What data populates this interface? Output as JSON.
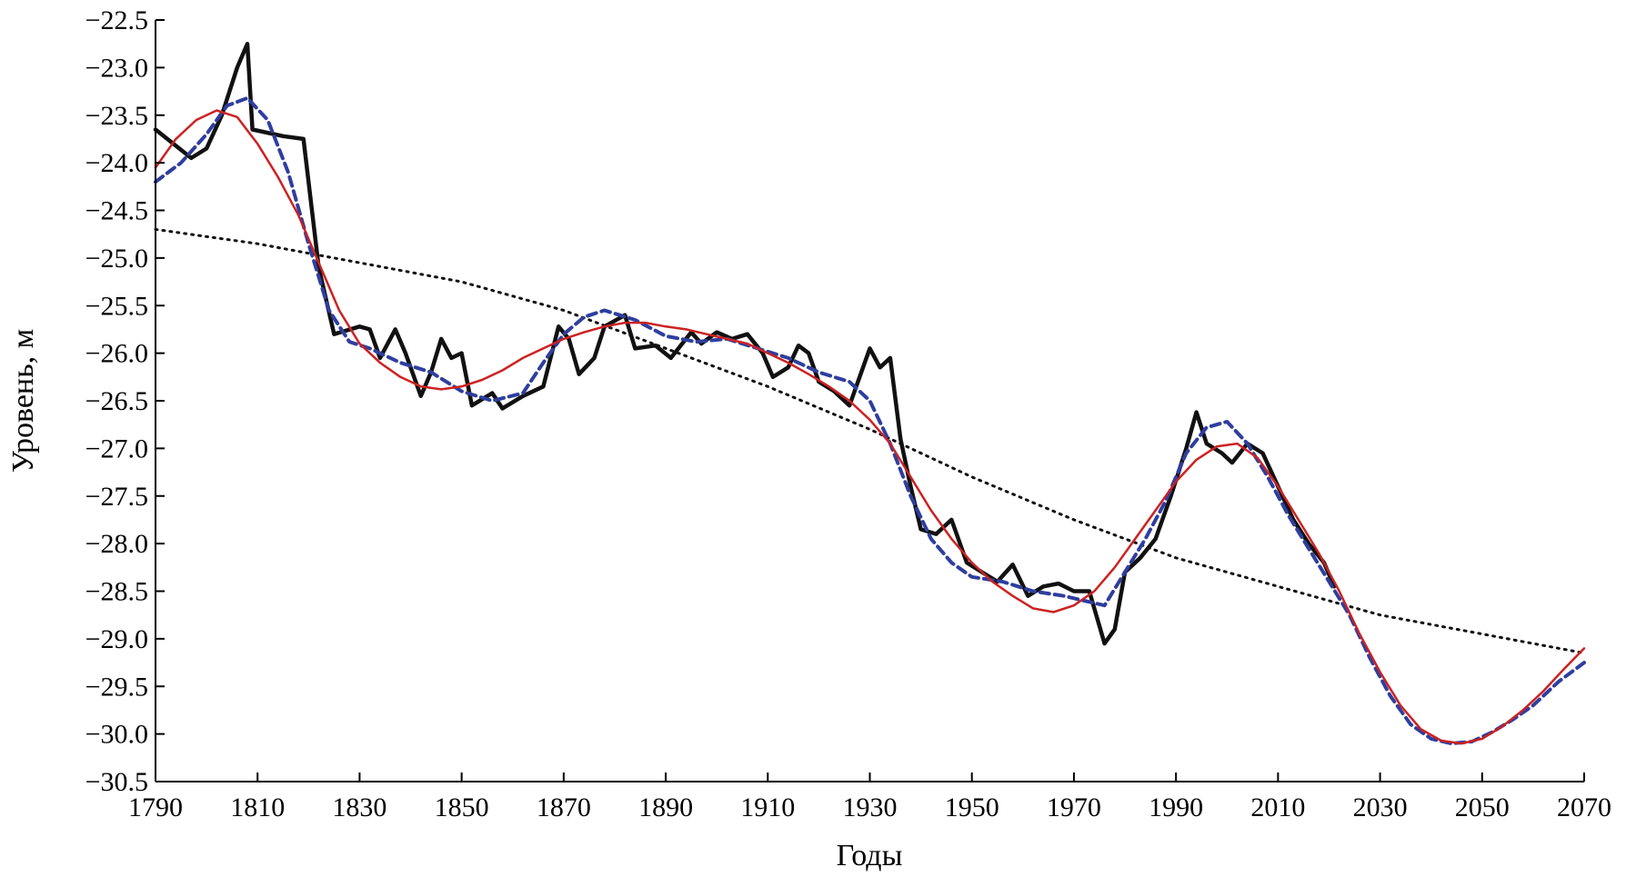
{
  "chart_data": {
    "type": "line",
    "title": "",
    "xlabel": "Годы",
    "ylabel": "Уровень, м",
    "xlim": [
      1790,
      2070
    ],
    "ylim": [
      -30.5,
      -22.5
    ],
    "x_ticks": [
      1790,
      1810,
      1830,
      1850,
      1870,
      1890,
      1910,
      1930,
      1950,
      1970,
      1990,
      2010,
      2030,
      2050,
      2070
    ],
    "y_ticks": [
      -22.5,
      -23.0,
      -23.5,
      -24.0,
      -24.5,
      -25.0,
      -25.5,
      -26.0,
      -26.5,
      -27.0,
      -27.5,
      -28.0,
      -28.5,
      -29.0,
      -29.5,
      -30.0,
      -30.5
    ],
    "y_tick_labels": [
      "−22.5",
      "−23.0",
      "−23.5",
      "−24.0",
      "−24.5",
      "−25.0",
      "−25.5",
      "−26.0",
      "−26.5",
      "−27.0",
      "−27.5",
      "−28.0",
      "−28.5",
      "−29.0",
      "−29.5",
      "−30.0",
      "−30.5"
    ],
    "grid": false,
    "legend": "none",
    "series": [
      {
        "style": "solid-thick",
        "color": "#111111",
        "points": [
          [
            1790,
            -23.65
          ],
          [
            1797,
            -23.95
          ],
          [
            1800,
            -23.85
          ],
          [
            1803,
            -23.5
          ],
          [
            1806,
            -23.0
          ],
          [
            1808,
            -22.75
          ],
          [
            1809,
            -23.65
          ],
          [
            1815,
            -23.72
          ],
          [
            1819,
            -23.75
          ],
          [
            1822,
            -25.1
          ],
          [
            1825,
            -25.8
          ],
          [
            1830,
            -25.72
          ],
          [
            1832,
            -25.75
          ],
          [
            1834,
            -26.05
          ],
          [
            1837,
            -25.75
          ],
          [
            1839,
            -26.0
          ],
          [
            1842,
            -26.45
          ],
          [
            1844,
            -26.2
          ],
          [
            1846,
            -25.85
          ],
          [
            1848,
            -26.05
          ],
          [
            1850,
            -26.0
          ],
          [
            1852,
            -26.55
          ],
          [
            1856,
            -26.42
          ],
          [
            1858,
            -26.58
          ],
          [
            1862,
            -26.45
          ],
          [
            1866,
            -26.35
          ],
          [
            1869,
            -25.72
          ],
          [
            1871,
            -25.85
          ],
          [
            1873,
            -26.22
          ],
          [
            1876,
            -26.05
          ],
          [
            1878,
            -25.72
          ],
          [
            1882,
            -25.6
          ],
          [
            1884,
            -25.95
          ],
          [
            1888,
            -25.92
          ],
          [
            1891,
            -26.05
          ],
          [
            1895,
            -25.78
          ],
          [
            1897,
            -25.9
          ],
          [
            1900,
            -25.78
          ],
          [
            1903,
            -25.85
          ],
          [
            1906,
            -25.8
          ],
          [
            1909,
            -26.0
          ],
          [
            1911,
            -26.25
          ],
          [
            1914,
            -26.15
          ],
          [
            1916,
            -25.92
          ],
          [
            1918,
            -26.0
          ],
          [
            1920,
            -26.3
          ],
          [
            1923,
            -26.4
          ],
          [
            1926,
            -26.55
          ],
          [
            1928,
            -26.25
          ],
          [
            1930,
            -25.95
          ],
          [
            1932,
            -26.15
          ],
          [
            1934,
            -26.05
          ],
          [
            1936,
            -26.9
          ],
          [
            1938,
            -27.4
          ],
          [
            1940,
            -27.85
          ],
          [
            1943,
            -27.9
          ],
          [
            1946,
            -27.75
          ],
          [
            1949,
            -28.2
          ],
          [
            1952,
            -28.3
          ],
          [
            1955,
            -28.4
          ],
          [
            1958,
            -28.22
          ],
          [
            1961,
            -28.55
          ],
          [
            1964,
            -28.45
          ],
          [
            1967,
            -28.42
          ],
          [
            1970,
            -28.5
          ],
          [
            1973,
            -28.5
          ],
          [
            1976,
            -29.05
          ],
          [
            1978,
            -28.9
          ],
          [
            1980,
            -28.3
          ],
          [
            1983,
            -28.15
          ],
          [
            1986,
            -27.95
          ],
          [
            1989,
            -27.5
          ],
          [
            1992,
            -27.0
          ],
          [
            1994,
            -26.62
          ],
          [
            1996,
            -26.95
          ],
          [
            1999,
            -27.05
          ],
          [
            2001,
            -27.15
          ],
          [
            2004,
            -26.95
          ],
          [
            2007,
            -27.05
          ],
          [
            2010,
            -27.4
          ],
          [
            2013,
            -27.75
          ],
          [
            2016,
            -28.0
          ],
          [
            2019,
            -28.2
          ],
          [
            2021,
            -28.45
          ]
        ]
      },
      {
        "style": "dashed",
        "color": "#2f3e9e",
        "points": [
          [
            1790,
            -24.2
          ],
          [
            1795,
            -24.0
          ],
          [
            1800,
            -23.7
          ],
          [
            1804,
            -23.4
          ],
          [
            1808,
            -23.32
          ],
          [
            1812,
            -23.55
          ],
          [
            1816,
            -24.1
          ],
          [
            1820,
            -24.85
          ],
          [
            1824,
            -25.55
          ],
          [
            1828,
            -25.88
          ],
          [
            1832,
            -25.95
          ],
          [
            1838,
            -26.1
          ],
          [
            1844,
            -26.2
          ],
          [
            1850,
            -26.4
          ],
          [
            1856,
            -26.5
          ],
          [
            1862,
            -26.42
          ],
          [
            1866,
            -26.1
          ],
          [
            1870,
            -25.8
          ],
          [
            1874,
            -25.62
          ],
          [
            1878,
            -25.55
          ],
          [
            1884,
            -25.65
          ],
          [
            1890,
            -25.82
          ],
          [
            1896,
            -25.88
          ],
          [
            1902,
            -25.85
          ],
          [
            1908,
            -25.95
          ],
          [
            1914,
            -26.05
          ],
          [
            1920,
            -26.2
          ],
          [
            1926,
            -26.3
          ],
          [
            1930,
            -26.5
          ],
          [
            1934,
            -26.95
          ],
          [
            1938,
            -27.5
          ],
          [
            1942,
            -27.95
          ],
          [
            1946,
            -28.2
          ],
          [
            1950,
            -28.35
          ],
          [
            1956,
            -28.4
          ],
          [
            1962,
            -28.5
          ],
          [
            1968,
            -28.55
          ],
          [
            1972,
            -28.6
          ],
          [
            1976,
            -28.65
          ],
          [
            1980,
            -28.3
          ],
          [
            1984,
            -27.95
          ],
          [
            1988,
            -27.55
          ],
          [
            1992,
            -27.05
          ],
          [
            1996,
            -26.78
          ],
          [
            2000,
            -26.72
          ],
          [
            2004,
            -26.95
          ],
          [
            2008,
            -27.3
          ],
          [
            2012,
            -27.7
          ],
          [
            2016,
            -28.05
          ],
          [
            2020,
            -28.4
          ],
          [
            2024,
            -28.75
          ],
          [
            2028,
            -29.2
          ],
          [
            2032,
            -29.6
          ],
          [
            2036,
            -29.9
          ],
          [
            2040,
            -30.05
          ],
          [
            2044,
            -30.1
          ],
          [
            2048,
            -30.08
          ],
          [
            2052,
            -29.98
          ],
          [
            2056,
            -29.85
          ],
          [
            2060,
            -29.7
          ],
          [
            2065,
            -29.45
          ],
          [
            2070,
            -29.25
          ]
        ]
      },
      {
        "style": "solid-thin",
        "color": "#cc2222",
        "points": [
          [
            1790,
            -24.05
          ],
          [
            1794,
            -23.75
          ],
          [
            1798,
            -23.55
          ],
          [
            1802,
            -23.45
          ],
          [
            1806,
            -23.52
          ],
          [
            1810,
            -23.8
          ],
          [
            1814,
            -24.15
          ],
          [
            1818,
            -24.55
          ],
          [
            1822,
            -25.05
          ],
          [
            1826,
            -25.55
          ],
          [
            1830,
            -25.9
          ],
          [
            1834,
            -26.1
          ],
          [
            1838,
            -26.25
          ],
          [
            1842,
            -26.35
          ],
          [
            1846,
            -26.38
          ],
          [
            1850,
            -26.35
          ],
          [
            1854,
            -26.28
          ],
          [
            1858,
            -26.18
          ],
          [
            1862,
            -26.05
          ],
          [
            1866,
            -25.95
          ],
          [
            1870,
            -25.85
          ],
          [
            1874,
            -25.78
          ],
          [
            1878,
            -25.72
          ],
          [
            1882,
            -25.68
          ],
          [
            1886,
            -25.68
          ],
          [
            1890,
            -25.72
          ],
          [
            1894,
            -25.75
          ],
          [
            1898,
            -25.8
          ],
          [
            1902,
            -25.85
          ],
          [
            1906,
            -25.9
          ],
          [
            1910,
            -26.0
          ],
          [
            1914,
            -26.1
          ],
          [
            1918,
            -26.22
          ],
          [
            1922,
            -26.35
          ],
          [
            1926,
            -26.5
          ],
          [
            1930,
            -26.7
          ],
          [
            1934,
            -26.95
          ],
          [
            1938,
            -27.3
          ],
          [
            1942,
            -27.65
          ],
          [
            1946,
            -27.95
          ],
          [
            1950,
            -28.2
          ],
          [
            1954,
            -28.4
          ],
          [
            1958,
            -28.55
          ],
          [
            1962,
            -28.68
          ],
          [
            1966,
            -28.72
          ],
          [
            1970,
            -28.65
          ],
          [
            1974,
            -28.5
          ],
          [
            1978,
            -28.25
          ],
          [
            1982,
            -27.95
          ],
          [
            1986,
            -27.65
          ],
          [
            1990,
            -27.35
          ],
          [
            1994,
            -27.12
          ],
          [
            1998,
            -26.98
          ],
          [
            2002,
            -26.95
          ],
          [
            2006,
            -27.1
          ],
          [
            2010,
            -27.4
          ],
          [
            2014,
            -27.75
          ],
          [
            2018,
            -28.1
          ],
          [
            2022,
            -28.5
          ],
          [
            2026,
            -28.95
          ],
          [
            2030,
            -29.35
          ],
          [
            2034,
            -29.7
          ],
          [
            2038,
            -29.95
          ],
          [
            2042,
            -30.07
          ],
          [
            2046,
            -30.1
          ],
          [
            2050,
            -30.05
          ],
          [
            2054,
            -29.92
          ],
          [
            2058,
            -29.75
          ],
          [
            2062,
            -29.55
          ],
          [
            2066,
            -29.32
          ],
          [
            2070,
            -29.1
          ]
        ]
      },
      {
        "style": "dotted",
        "color": "#111111",
        "points": [
          [
            1790,
            -24.7
          ],
          [
            1810,
            -24.85
          ],
          [
            1830,
            -25.05
          ],
          [
            1850,
            -25.25
          ],
          [
            1870,
            -25.55
          ],
          [
            1890,
            -25.95
          ],
          [
            1910,
            -26.35
          ],
          [
            1930,
            -26.8
          ],
          [
            1950,
            -27.3
          ],
          [
            1970,
            -27.75
          ],
          [
            1990,
            -28.15
          ],
          [
            2010,
            -28.45
          ],
          [
            2030,
            -28.75
          ],
          [
            2050,
            -28.95
          ],
          [
            2070,
            -29.15
          ]
        ]
      }
    ]
  }
}
